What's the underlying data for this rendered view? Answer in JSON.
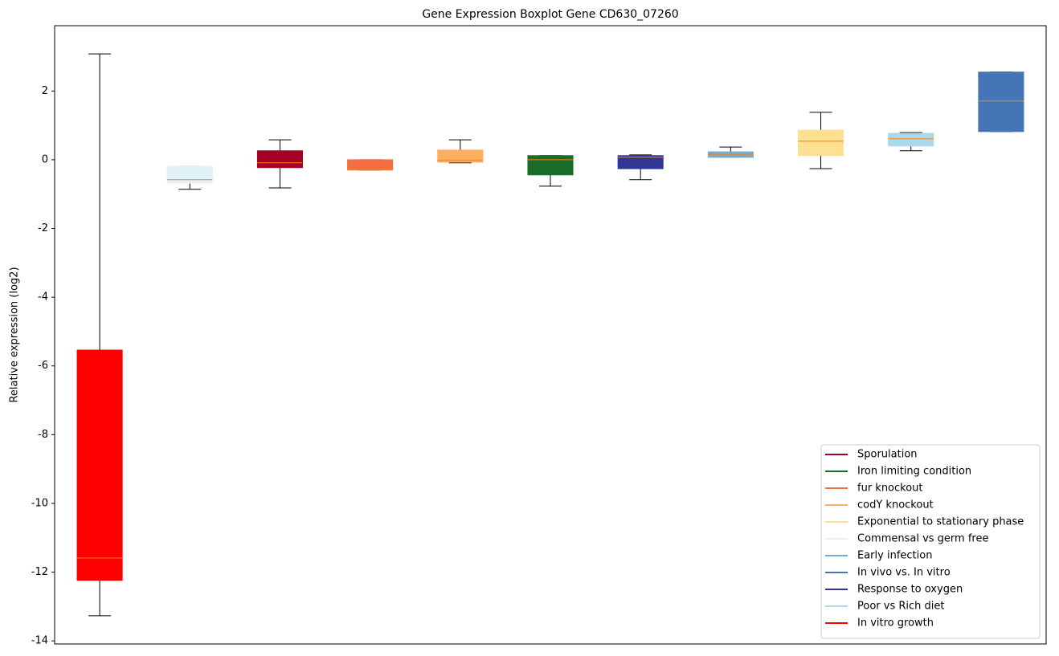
{
  "chart_data": {
    "type": "box",
    "title": "Gene Expression Boxplot Gene CD630_07260",
    "ylabel": "Relative expression (log2)",
    "xlim": [
      0.5,
      11.5
    ],
    "ylim": [
      -14.09,
      3.9
    ],
    "yticks": [
      2,
      0,
      -2,
      -4,
      -6,
      -8,
      -10,
      -12,
      -14
    ],
    "median_color": "#ff7f0e",
    "legend": "lower right",
    "series": [
      {
        "name": "Sporulation",
        "color": "#a50026",
        "x": 3,
        "min": -0.82,
        "q1": -0.23,
        "median": -0.09,
        "q3": 0.26,
        "max": 0.58
      },
      {
        "name": "Iron limiting condition",
        "color": "#1a6b2a",
        "x": 6,
        "min": -0.77,
        "q1": -0.44,
        "median": 0.0,
        "q3": 0.12,
        "max": 0.12
      },
      {
        "name": "fur knockout",
        "color": "#f46d43",
        "x": 4,
        "min": -0.3,
        "q1": -0.3,
        "median": -0.28,
        "q3": 0.0,
        "max": 0.0
      },
      {
        "name": "codY knockout",
        "color": "#fdae61",
        "x": 5,
        "min": -0.09,
        "q1": -0.07,
        "median": -0.02,
        "q3": 0.28,
        "max": 0.58
      },
      {
        "name": "Exponential to stationary phase",
        "color": "#fee090",
        "x": 9,
        "min": -0.26,
        "q1": 0.12,
        "median": 0.54,
        "q3": 0.86,
        "max": 1.38
      },
      {
        "name": "Commensal vs germ free",
        "color": "#e0f3f8",
        "x": 2,
        "min": -0.86,
        "q1": -0.68,
        "median": -0.58,
        "q3": -0.19,
        "max": -0.19
      },
      {
        "name": "Early infection",
        "color": "#74add1",
        "x": 8,
        "min": 0.07,
        "q1": 0.07,
        "median": 0.16,
        "q3": 0.23,
        "max": 0.37
      },
      {
        "name": "In vivo vs. In vitro",
        "color": "#4575b4",
        "x": 11,
        "min": 0.82,
        "q1": 0.82,
        "median": 1.71,
        "q3": 2.55,
        "max": 2.55
      },
      {
        "name": "Response to oxygen",
        "color": "#313695",
        "x": 7,
        "min": -0.58,
        "q1": -0.26,
        "median": 0.07,
        "q3": 0.12,
        "max": 0.14
      },
      {
        "name": "Poor vs Rich diet",
        "color": "#abd9e9",
        "x": 10,
        "min": 0.26,
        "q1": 0.4,
        "median": 0.61,
        "q3": 0.77,
        "max": 0.79
      },
      {
        "name": "In vitro growth",
        "color": "#ff0000",
        "x": 1,
        "min": -13.27,
        "q1": -12.24,
        "median": -11.59,
        "q3": -5.54,
        "max": 3.08
      }
    ]
  }
}
